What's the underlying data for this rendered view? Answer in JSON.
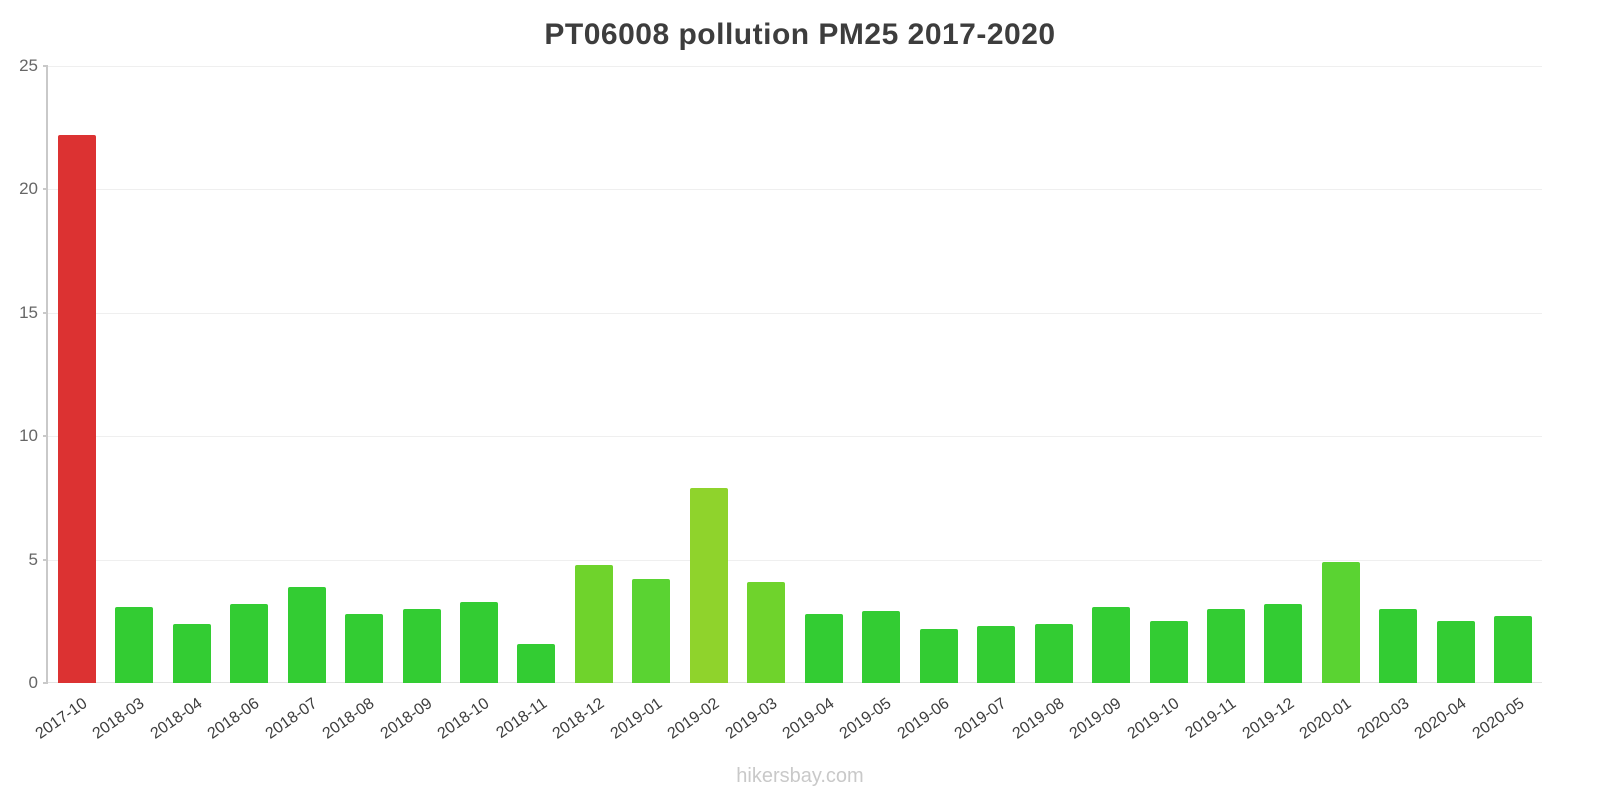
{
  "footer": {
    "text": "hikersbay.com"
  },
  "axis": {
    "y_ticks": [
      0,
      5,
      10,
      15,
      20,
      25
    ]
  },
  "chart_data": {
    "type": "bar",
    "title": "PT06008 pollution PM25 2017-2020",
    "xlabel": "",
    "ylabel": "",
    "ylim": [
      0,
      25
    ],
    "grid": true,
    "legend": "none",
    "categories": [
      "2017-10",
      "2018-03",
      "2018-04",
      "2018-06",
      "2018-07",
      "2018-08",
      "2018-09",
      "2018-10",
      "2018-11",
      "2018-12",
      "2019-01",
      "2019-02",
      "2019-03",
      "2019-04",
      "2019-05",
      "2019-06",
      "2019-07",
      "2019-08",
      "2019-09",
      "2019-10",
      "2019-11",
      "2019-12",
      "2020-01",
      "2020-03",
      "2020-04",
      "2020-05"
    ],
    "values": [
      22.2,
      3.1,
      2.4,
      3.2,
      3.9,
      2.8,
      3.0,
      3.3,
      1.6,
      4.8,
      4.2,
      7.9,
      4.1,
      2.8,
      2.9,
      2.2,
      2.3,
      2.4,
      3.1,
      2.5,
      3.0,
      3.2,
      4.9,
      3.0,
      2.5,
      2.7
    ],
    "bar_colors": [
      "#dc3232",
      "#33cc33",
      "#33cc33",
      "#33cc33",
      "#33cc33",
      "#33cc33",
      "#33cc33",
      "#33cc33",
      "#33cc33",
      "#6fd32c",
      "#5ad332",
      "#8fd32c",
      "#6fd32c",
      "#33cc33",
      "#33cc33",
      "#33cc33",
      "#33cc33",
      "#33cc33",
      "#33cc33",
      "#33cc33",
      "#33cc33",
      "#33cc33",
      "#5ad332",
      "#33cc33",
      "#33cc33",
      "#33cc33"
    ],
    "colors": {
      "highlight_red": "#dc3232",
      "normal_green": "#33cc33",
      "light_green": "#6fd32c",
      "yellow_green": "#8fd32c",
      "gridline": "#efefef",
      "axis": "#c9c9c9",
      "title_text": "#3d3d3d",
      "tick_text": "#666666",
      "watermark": "#c9c9c9"
    }
  }
}
